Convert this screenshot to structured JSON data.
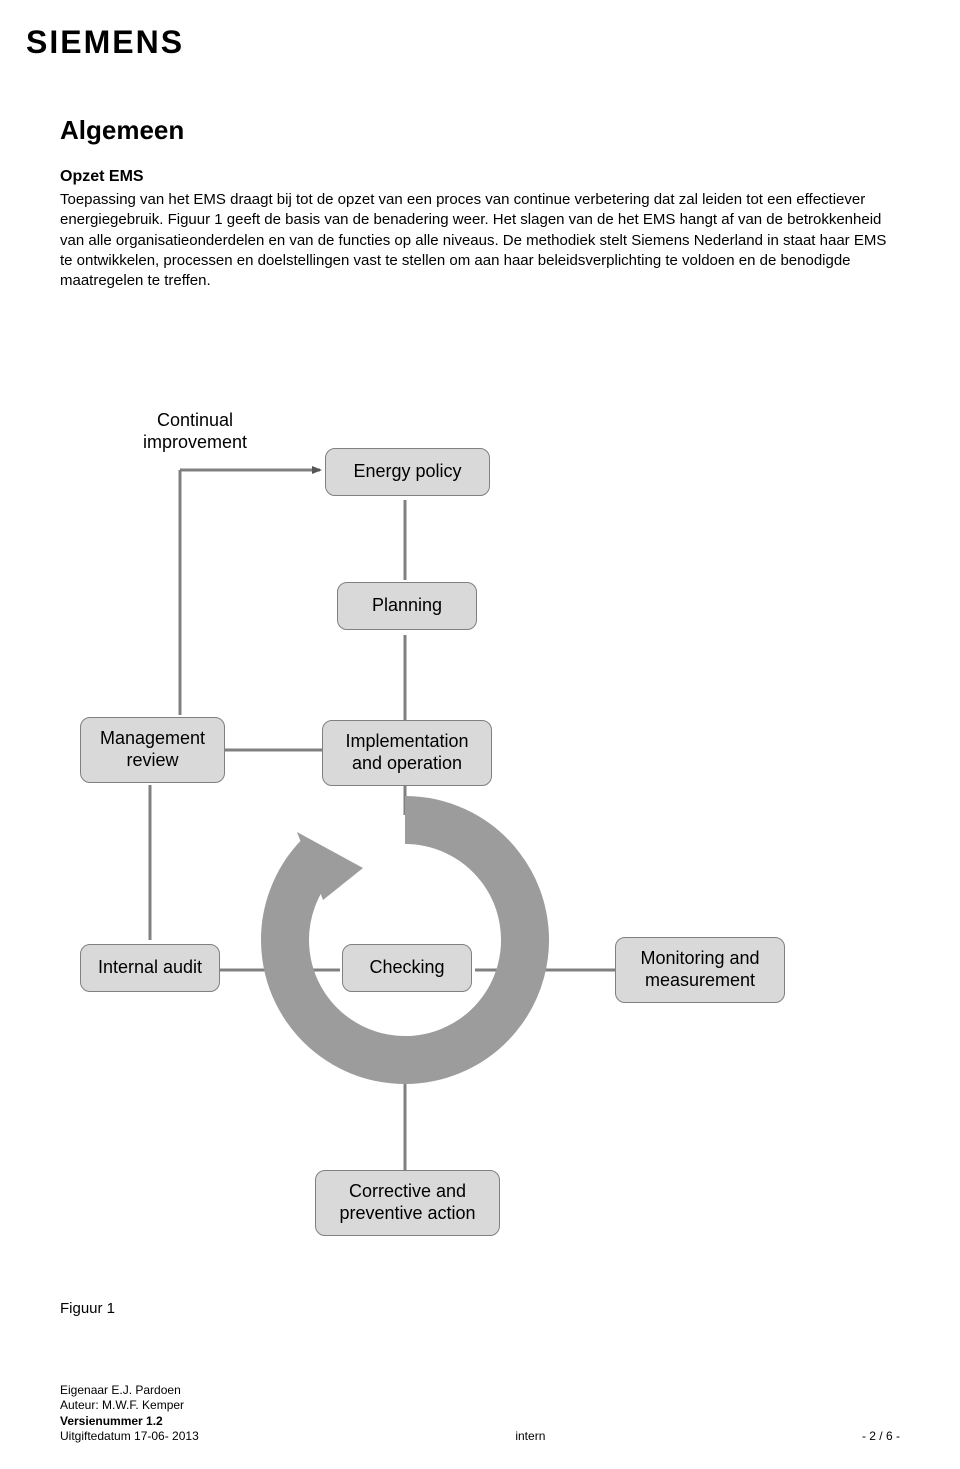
{
  "logo": "SIEMENS",
  "heading": "Algemeen",
  "subheading": "Opzet EMS",
  "paragraph": "Toepassing van het EMS draagt bij tot de opzet van een proces van continue verbetering dat zal leiden tot een effectiever energiegebruik. Figuur 1 geeft de basis van de benadering weer. Het slagen van de het EMS hangt af van de betrokkenheid van alle organisatieonderdelen en van de functies op alle niveaus. De methodiek stelt Siemens Nederland in staat haar EMS te ontwikkelen, processen en doelstellingen vast te stellen om aan haar beleidsverplichting te voldoen en de benodigde maatregelen te treffen.",
  "diagram": {
    "continual_label": "Continual\nimprovement",
    "nodes": {
      "energy_policy": "Energy policy",
      "planning": "Planning",
      "management_review": "Management\nreview",
      "implementation": "Implementation\nand operation",
      "internal_audit": "Internal audit",
      "checking": "Checking",
      "monitoring": "Monitoring and\nmeasurement",
      "corrective": "Corrective and\npreventive action"
    },
    "colors": {
      "node_fill": "#d9d9d9",
      "node_border": "#808080",
      "line": "#808080",
      "arrow_head": "#555555",
      "ring": "#9c9c9c"
    }
  },
  "caption": "Figuur 1",
  "footer": {
    "owner": "Eigenaar E.J. Pardoen",
    "author": "Auteur: M.W.F. Kemper",
    "version": "Versienummer 1.2",
    "date": "Uitgiftedatum 17-06- 2013",
    "classification": "intern",
    "page": "- 2 / 6 -"
  }
}
